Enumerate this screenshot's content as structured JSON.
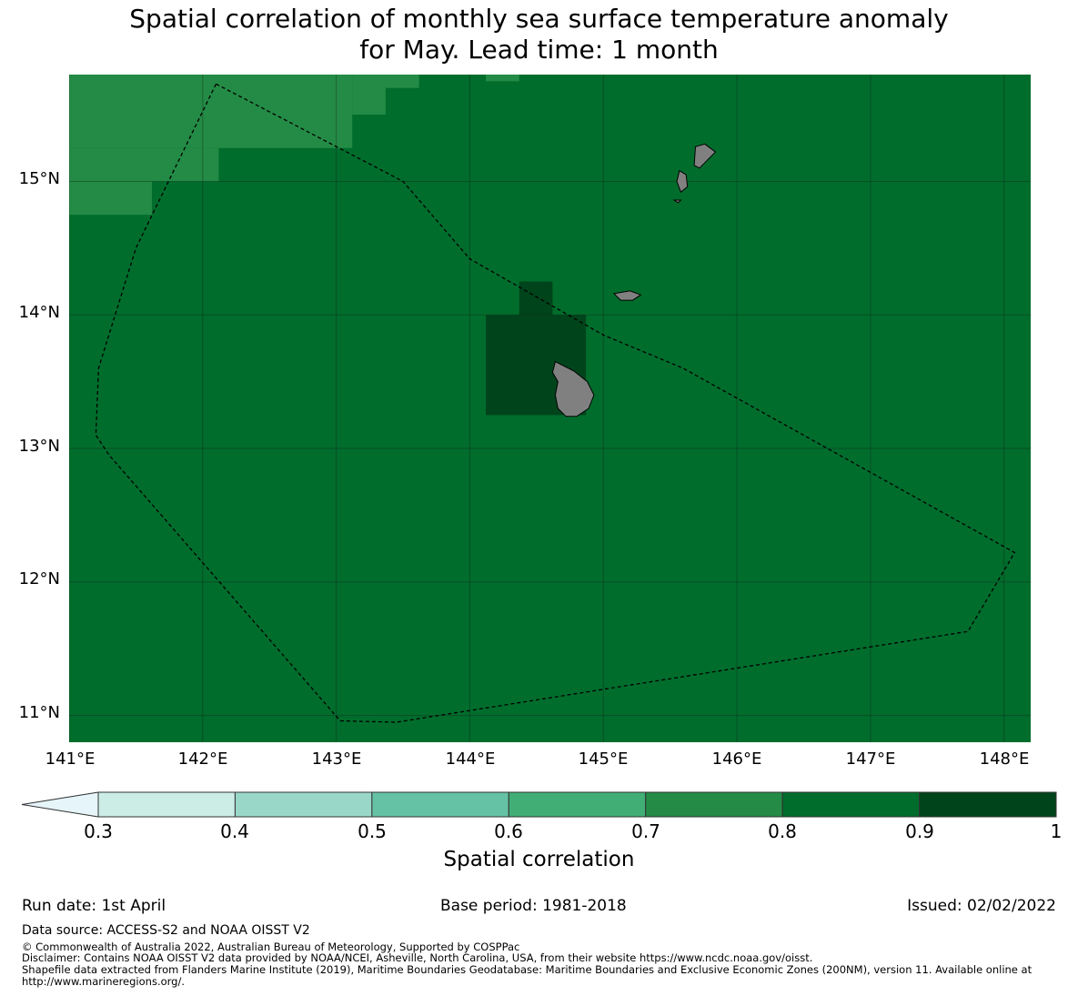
{
  "title_line1": "Spatial correlation of monthly sea surface temperature anomaly",
  "title_line2": "for May. Lead time: 1 month",
  "map": {
    "lon_range": [
      141.0,
      148.2
    ],
    "lat_range": [
      10.8,
      15.8
    ],
    "lon_ticks": [
      "141°E",
      "142°E",
      "143°E",
      "144°E",
      "145°E",
      "146°E",
      "147°E",
      "148°E"
    ],
    "lat_ticks": [
      "15°N",
      "14°N",
      "13°N",
      "12°N",
      "11°N"
    ],
    "colors": {
      "r_0_7_0_8": "#238b45",
      "r_0_8_0_9": "#006d2c",
      "r_0_9_1": "#00441b",
      "land": "#808080",
      "gridline": "#1a1a1a",
      "boundary": "#000000"
    },
    "cell_size_deg": 0.25,
    "regions": [
      {
        "class": "0.7-0.8",
        "lon": [
          141.0,
          143.12
        ],
        "lat": [
          15.25,
          15.8
        ]
      },
      {
        "class": "0.7-0.8",
        "lon": [
          143.12,
          143.37
        ],
        "lat": [
          15.5,
          15.8
        ]
      },
      {
        "class": "0.7-0.8",
        "lon": [
          143.37,
          143.62
        ],
        "lat": [
          15.7,
          15.8
        ]
      },
      {
        "class": "0.7-0.8",
        "lon": [
          144.12,
          144.37
        ],
        "lat": [
          15.75,
          15.8
        ]
      },
      {
        "class": "0.7-0.8",
        "lon": [
          141.0,
          142.12
        ],
        "lat": [
          15.0,
          15.25
        ]
      },
      {
        "class": "0.7-0.8",
        "lon": [
          141.0,
          141.62
        ],
        "lat": [
          14.75,
          15.0
        ]
      },
      {
        "class": "0.9-1",
        "lon": [
          144.12,
          144.87
        ],
        "lat": [
          13.25,
          14.0
        ]
      },
      {
        "class": "0.9-1",
        "lon": [
          144.37,
          144.62
        ],
        "lat": [
          14.0,
          14.25
        ]
      }
    ],
    "eez_boundary": [
      [
        142.1,
        15.73
      ],
      [
        143.5,
        15.0
      ],
      [
        144.0,
        14.42
      ],
      [
        145.0,
        13.85
      ],
      [
        145.6,
        13.6
      ],
      [
        148.08,
        12.22
      ],
      [
        147.73,
        11.63
      ],
      [
        143.45,
        10.95
      ],
      [
        143.03,
        10.96
      ],
      [
        141.3,
        12.95
      ],
      [
        141.2,
        13.1
      ],
      [
        141.22,
        13.6
      ],
      [
        141.5,
        14.5
      ],
      [
        142.1,
        15.73
      ]
    ],
    "islands": [
      {
        "name": "Guam",
        "points": [
          [
            144.64,
            13.65
          ],
          [
            144.78,
            13.58
          ],
          [
            144.88,
            13.5
          ],
          [
            144.93,
            13.4
          ],
          [
            144.89,
            13.3
          ],
          [
            144.8,
            13.24
          ],
          [
            144.72,
            13.24
          ],
          [
            144.66,
            13.3
          ],
          [
            144.64,
            13.4
          ],
          [
            144.66,
            13.5
          ],
          [
            144.62,
            13.57
          ]
        ]
      },
      {
        "name": "Rota",
        "points": [
          [
            145.08,
            14.16
          ],
          [
            145.2,
            14.18
          ],
          [
            145.28,
            14.15
          ],
          [
            145.22,
            14.11
          ],
          [
            145.13,
            14.11
          ]
        ]
      },
      {
        "name": "Tinian",
        "points": [
          [
            145.57,
            15.08
          ],
          [
            145.62,
            15.05
          ],
          [
            145.63,
            14.96
          ],
          [
            145.58,
            14.92
          ],
          [
            145.55,
            15.0
          ]
        ]
      },
      {
        "name": "Saipan",
        "points": [
          [
            145.69,
            15.26
          ],
          [
            145.76,
            15.28
          ],
          [
            145.84,
            15.22
          ],
          [
            145.72,
            15.1
          ],
          [
            145.68,
            15.12
          ]
        ]
      },
      {
        "name": "Aguijan",
        "points": [
          [
            145.53,
            14.86
          ],
          [
            145.58,
            14.86
          ],
          [
            145.56,
            14.84
          ]
        ]
      }
    ]
  },
  "colorbar": {
    "label": "Spatial correlation",
    "boundaries": [
      0.3,
      0.4,
      0.5,
      0.6,
      0.7,
      0.8,
      0.9,
      1.0
    ],
    "tick_labels": [
      "0.3",
      "0.4",
      "0.5",
      "0.6",
      "0.7",
      "0.8",
      "0.9",
      "1"
    ],
    "colors": [
      "#ccece6",
      "#99d8c9",
      "#66c2a4",
      "#41ae76",
      "#238b45",
      "#006d2c",
      "#00441b"
    ],
    "under_color": "#e5f5f9"
  },
  "footer": {
    "run_date": "Run date: 1st April",
    "base_period": "Base period: 1981-2018",
    "issued": "Issued: 02/02/2022",
    "data_source": "Data source: ACCESS-S2 and NOAA OISST V2",
    "copyright": "© Commonwealth of Australia 2022, Australian Bureau of Meteorology, Supported by COSPPac",
    "disclaimer": "Disclaimer: Contains NOAA OISST V2 data provided by NOAA/NCEI, Asheville, North Carolina, USA, from their website https://www.ncdc.noaa.gov/oisst.",
    "shapefile": "Shapefile data extracted from Flanders Marine Institute (2019), Maritime Boundaries Geodatabase: Maritime Boundaries and Exclusive Economic Zones (200NM), version 11. Available online at http://www.marineregions.org/."
  }
}
